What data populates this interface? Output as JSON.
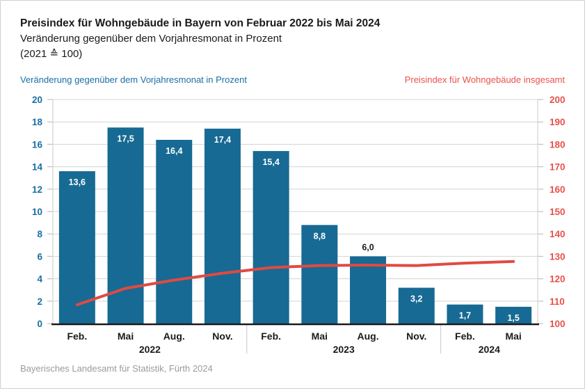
{
  "header": {
    "title": "Preisindex für Wohngebäude in Bayern von Februar 2022 bis Mai 2024",
    "subtitle": "Veränderung gegenüber dem Vorjahresmonat in Prozent",
    "base_note": "(2021 ≙ 100)"
  },
  "axis_captions": {
    "left": "Veränderung gegenüber dem Vorjahresmonat in Prozent",
    "right": "Preisindex für Wohngebäude insgesamt"
  },
  "footer": {
    "source": "Bayerisches Landesamt für Statistik, Fürth 2024"
  },
  "colors": {
    "bar": "#176a93",
    "line": "#e04a41",
    "left_axis_text": "#1a6fa5",
    "right_axis_text": "#e8524a",
    "grid": "#d3d3d3",
    "tick": "#c0c0c0",
    "separator": "#c6c6c6",
    "axis_line": "#1a1a1a",
    "bar_label_inside": "#ffffff",
    "bar_label_outside": "#1a1a1a",
    "month_label": "#1a1a1a"
  },
  "chart_data": {
    "type": "combo",
    "title": "Preisindex für Wohngebäude in Bayern von Februar 2022 bis Mai 2024",
    "categories": [
      "Feb.",
      "Mai",
      "Aug.",
      "Nov.",
      "Feb.",
      "Mai",
      "Aug.",
      "Nov.",
      "Feb.",
      "Mai"
    ],
    "year_groups": [
      {
        "label": "2022",
        "count": 4
      },
      {
        "label": "2023",
        "count": 4
      },
      {
        "label": "2024",
        "count": 2
      }
    ],
    "series": [
      {
        "name": "Veränderung gegenüber dem Vorjahresmonat in Prozent",
        "type": "bar",
        "axis": "left",
        "values": [
          13.6,
          17.5,
          16.4,
          17.4,
          15.4,
          8.8,
          6.0,
          3.2,
          1.7,
          1.5
        ],
        "value_labels": [
          "13,6",
          "17,5",
          "16,4",
          "17,4",
          "15,4",
          "8,8",
          "6,0",
          "3,2",
          "1,7",
          "1,5"
        ],
        "label_positions": [
          "inside",
          "inside",
          "inside",
          "inside",
          "inside",
          "inside",
          "above",
          "inside",
          "inside",
          "inside"
        ]
      },
      {
        "name": "Preisindex für Wohngebäude insgesamt",
        "type": "line",
        "axis": "right",
        "values": [
          108.4,
          115.7,
          119.4,
          122.5,
          125.0,
          125.9,
          126.1,
          125.9,
          127.0,
          127.7
        ]
      }
    ],
    "left_axis": {
      "label": "Veränderung gegenüber dem Vorjahresmonat in Prozent",
      "range": [
        0,
        20
      ],
      "tick_step": 2,
      "ticks": [
        0,
        2,
        4,
        6,
        8,
        10,
        12,
        14,
        16,
        18,
        20
      ]
    },
    "right_axis": {
      "label": "Preisindex für Wohngebäude insgesamt",
      "range": [
        100,
        200
      ],
      "tick_step": 10,
      "ticks": [
        100,
        110,
        120,
        130,
        140,
        150,
        160,
        170,
        180,
        190,
        200
      ]
    },
    "grid": true,
    "legend_position": "top-captions"
  }
}
